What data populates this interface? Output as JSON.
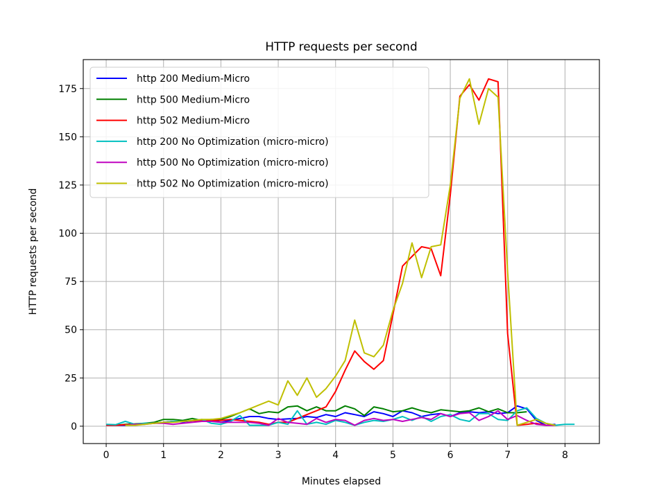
{
  "chart_data": {
    "type": "line",
    "title": "HTTP requests per second",
    "xlabel": "Minutes elapsed",
    "ylabel": "HTTP requests per second",
    "xlim": [
      -0.4,
      8.6
    ],
    "ylim": [
      -9,
      190
    ],
    "xticks": [
      0,
      1,
      2,
      3,
      4,
      5,
      6,
      7,
      8
    ],
    "yticks": [
      0,
      25,
      50,
      75,
      100,
      125,
      150,
      175
    ],
    "grid": true,
    "legend_position": "upper-left",
    "series": [
      {
        "name": "http 200 Medium-Micro",
        "color": "#0000ff",
        "x": [
          0,
          0.167,
          0.333,
          0.5,
          0.667,
          0.833,
          1,
          1.167,
          1.333,
          1.5,
          1.667,
          1.833,
          2,
          2.167,
          2.333,
          2.5,
          2.667,
          2.833,
          3,
          3.167,
          3.333,
          3.5,
          3.667,
          3.833,
          4,
          4.167,
          4.333,
          4.5,
          4.667,
          4.833,
          5,
          5.167,
          5.333,
          5.5,
          5.667,
          5.833,
          6,
          6.167,
          6.333,
          6.5,
          6.667,
          6.833,
          7,
          7.167,
          7.333,
          7.5,
          7.667,
          7.833
        ],
        "y": [
          0.5,
          0.5,
          0.5,
          1,
          1.2,
          1.5,
          2,
          2.5,
          2.2,
          2.8,
          3,
          3.2,
          2,
          3,
          4,
          5,
          5,
          4,
          3.5,
          3.8,
          4,
          5,
          4.5,
          6,
          5,
          7,
          6,
          5,
          7.5,
          6.5,
          5,
          8,
          7,
          5,
          6,
          6.5,
          5,
          7,
          7.5,
          7,
          7.5,
          6.5,
          7,
          10.5,
          9,
          3,
          0.5,
          1
        ]
      },
      {
        "name": "http 500 Medium-Micro",
        "color": "#008000",
        "x": [
          0.167,
          0.333,
          0.5,
          0.667,
          0.833,
          1,
          1.167,
          1.333,
          1.5,
          1.667,
          1.833,
          2,
          2.167,
          2.333,
          2.5,
          2.667,
          2.833,
          3,
          3.167,
          3.333,
          3.5,
          3.667,
          3.833,
          4,
          4.167,
          4.333,
          4.5,
          4.667,
          4.833,
          5,
          5.167,
          5.333,
          5.5,
          5.667,
          5.833,
          6,
          6.167,
          6.333,
          6.5,
          6.667,
          6.833,
          7,
          7.167,
          7.333
        ],
        "y": [
          0.5,
          1,
          1.2,
          1.5,
          2,
          3.5,
          3.5,
          3,
          4,
          3,
          3.5,
          3.5,
          5,
          7,
          9,
          6.5,
          7.5,
          7,
          10,
          10.5,
          8,
          10,
          8,
          8,
          10.5,
          9,
          5.5,
          10,
          9,
          7.5,
          8,
          9.5,
          8,
          7,
          8.5,
          8,
          7.5,
          8,
          9.5,
          7.5,
          9,
          7,
          7,
          7.5
        ]
      },
      {
        "name": "http 502 Medium-Micro",
        "color": "#ff0000",
        "x": [
          0,
          0.167,
          0.333,
          0.5,
          0.667,
          0.833,
          1,
          1.167,
          1.333,
          1.5,
          1.667,
          1.833,
          2,
          2.167,
          2.333,
          2.5,
          2.667,
          2.833,
          3,
          3.167,
          3.333,
          3.5,
          3.667,
          3.833,
          4,
          4.167,
          4.333,
          4.5,
          4.667,
          4.833,
          5,
          5.167,
          5.333,
          5.5,
          5.667,
          5.833,
          6,
          6.167,
          6.333,
          6.5,
          6.667,
          6.833,
          7,
          7.167,
          7.333,
          7.5,
          7.667,
          7.833
        ],
        "y": [
          0.5,
          0.5,
          0.8,
          1,
          1.2,
          1.5,
          2,
          2.5,
          2.5,
          2.8,
          3,
          3,
          3,
          3.5,
          3,
          2.5,
          2,
          1,
          2,
          2,
          4,
          6,
          8,
          10,
          18,
          29,
          39,
          33.5,
          29.5,
          34,
          58,
          83,
          88,
          93,
          92,
          78,
          120,
          171,
          177,
          169,
          180,
          178.5,
          48,
          0.5,
          1,
          1.5,
          0.5,
          0.5
        ]
      },
      {
        "name": "http 200 No Optimization (micro-micro)",
        "color": "#00bfbf",
        "x": [
          0,
          0.167,
          0.333,
          0.5,
          0.667,
          0.833,
          1,
          1.167,
          1.333,
          1.5,
          1.667,
          1.833,
          2,
          2.167,
          2.333,
          2.5,
          2.667,
          2.833,
          3,
          3.167,
          3.333,
          3.5,
          3.667,
          3.833,
          4,
          4.167,
          4.333,
          4.5,
          4.667,
          4.833,
          5,
          5.167,
          5.333,
          5.5,
          5.667,
          5.833,
          6,
          6.167,
          6.333,
          6.5,
          6.667,
          6.833,
          7,
          7.167,
          7.333,
          7.5,
          7.667,
          7.833,
          8,
          8.167
        ],
        "y": [
          1,
          0.8,
          2.5,
          1,
          1.5,
          1.5,
          2,
          2.5,
          2.5,
          3,
          3.5,
          1.5,
          1,
          2.5,
          5.5,
          0.5,
          0.5,
          0.5,
          2,
          1,
          8,
          1,
          2,
          1,
          3,
          2,
          0.5,
          2,
          3,
          2.5,
          3.5,
          5,
          3,
          5,
          2.5,
          5,
          6,
          3.5,
          2.5,
          6.5,
          6.5,
          3.5,
          3,
          8,
          9.5,
          4,
          1.5,
          0.5,
          1,
          1
        ]
      },
      {
        "name": "http 500 No Optimization (micro-micro)",
        "color": "#bf00bf",
        "x": [
          0.333,
          0.5,
          0.667,
          0.833,
          1,
          1.167,
          1.333,
          1.5,
          1.667,
          1.833,
          2,
          2.167,
          2.333,
          2.5,
          2.667,
          2.833,
          3,
          3.167,
          3.333,
          3.5,
          3.667,
          3.833,
          4,
          4.167,
          4.333,
          4.5,
          4.667,
          4.833,
          5,
          5.167,
          5.333,
          5.5,
          5.667,
          5.833,
          6,
          6.167,
          6.333,
          6.5,
          6.667,
          6.833,
          7,
          7.167,
          7.333,
          7.5,
          7.667,
          7.833
        ],
        "y": [
          0.5,
          1,
          1,
          1.5,
          1.5,
          1,
          1.5,
          2,
          2.5,
          2.5,
          2,
          2,
          2,
          2,
          1.5,
          0.5,
          4,
          2,
          1.5,
          1,
          4,
          2,
          3.5,
          3,
          0.5,
          3,
          4,
          3,
          3.5,
          2.5,
          3.5,
          4.5,
          3.5,
          6.5,
          5,
          6.5,
          7,
          3,
          5,
          8,
          3.5,
          5.5,
          3,
          1,
          0.5,
          0.5
        ]
      },
      {
        "name": "http 502 No Optimization (micro-micro)",
        "color": "#bfbf00",
        "x": [
          0.333,
          0.5,
          0.667,
          0.833,
          1,
          1.167,
          1.333,
          1.5,
          1.667,
          1.833,
          2,
          2.167,
          2.333,
          2.5,
          2.667,
          2.833,
          3,
          3.167,
          3.333,
          3.5,
          3.667,
          3.833,
          4,
          4.167,
          4.333,
          4.5,
          4.667,
          4.833,
          5,
          5.167,
          5.333,
          5.5,
          5.667,
          5.833,
          6,
          6.167,
          6.333,
          6.5,
          6.667,
          6.833,
          7,
          7.167,
          7.333,
          7.5,
          7.667,
          7.833
        ],
        "y": [
          0.5,
          0.5,
          1,
          1.5,
          2,
          2,
          2.5,
          3,
          3.5,
          3.5,
          4,
          5.5,
          7,
          9,
          11,
          13,
          11,
          23.5,
          16,
          25,
          15,
          19.5,
          26,
          34,
          55,
          38,
          36,
          42,
          60,
          74,
          95,
          77,
          93,
          94,
          125,
          170,
          180,
          156.5,
          175,
          170.5,
          80,
          0.5,
          2,
          3.5,
          1.5,
          0.5
        ]
      }
    ]
  }
}
